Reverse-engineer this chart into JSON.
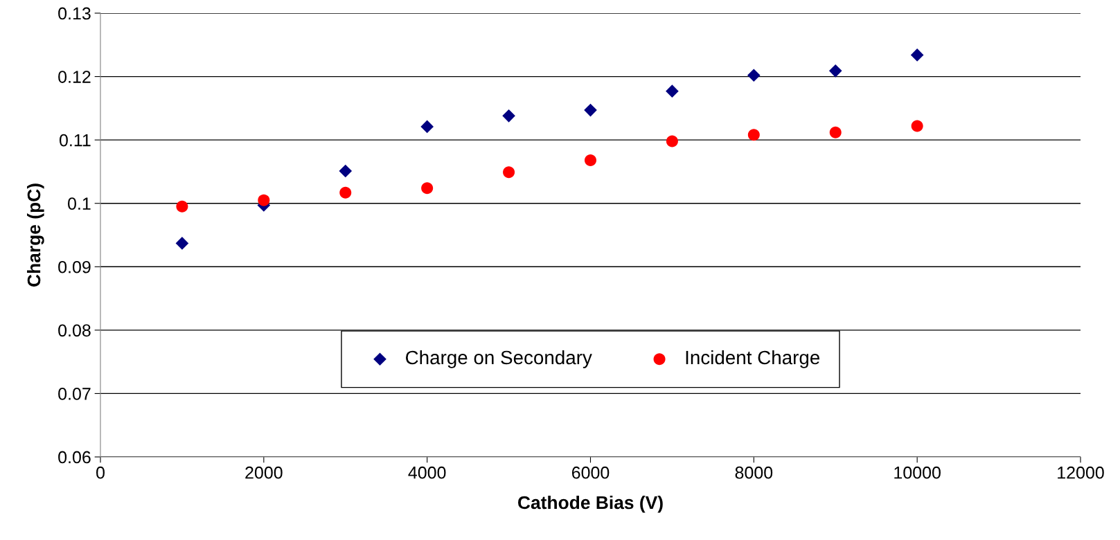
{
  "chart_data": {
    "type": "scatter",
    "xlabel": "Cathode Bias (V)",
    "ylabel": "Charge (pC)",
    "x": [
      1000,
      2000,
      3000,
      4000,
      5000,
      6000,
      7000,
      8000,
      9000,
      10000
    ],
    "series": [
      {
        "name": "Charge on Secondary",
        "color": "#000080",
        "marker": "diamond",
        "values": [
          0.0937,
          0.0997,
          0.1051,
          0.1121,
          0.1138,
          0.1147,
          0.1177,
          0.1202,
          0.1209,
          0.1234
        ]
      },
      {
        "name": "Incident Charge",
        "color": "#ff0000",
        "marker": "circle",
        "values": [
          0.0995,
          0.1005,
          0.1017,
          0.1024,
          0.1049,
          0.1068,
          0.1098,
          0.1108,
          0.1112,
          0.1122
        ]
      }
    ],
    "xlim": [
      0,
      12000
    ],
    "xticks": [
      0,
      2000,
      4000,
      6000,
      8000,
      10000,
      12000
    ],
    "ylim": [
      0.06,
      0.13
    ],
    "yticks": [
      0.06,
      0.07,
      0.08,
      0.09,
      0.1,
      0.11,
      0.12,
      0.13
    ],
    "grid": "y",
    "legend": "bottom"
  }
}
